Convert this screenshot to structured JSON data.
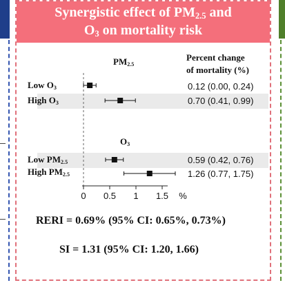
{
  "header": {
    "line1_main": "Synergistic effect of PM",
    "line1_sub": "2.5",
    "line1_tail": " and",
    "line2_main": "O",
    "line2_sub": "3",
    "line2_tail": " on mortality risk"
  },
  "colors": {
    "header_bg": "#f46f7b",
    "panel_border": "#e0707a",
    "left_panel_accent": "#1f3e8a",
    "right_panel_accent": "#4f7f2a"
  },
  "chart_data": {
    "type": "forest",
    "column_header": [
      "Percent change",
      "of mortality (%)"
    ],
    "x_ticks": [
      "0",
      "0.5",
      "1",
      "1.5",
      "%"
    ],
    "xlim": [
      0,
      1.5
    ],
    "groups": [
      {
        "title_main": "PM",
        "title_sub": "2.5",
        "rows": [
          {
            "label_main": "Low O",
            "label_sub": "3",
            "estimate": 0.12,
            "lower": 0.0,
            "upper": 0.24,
            "text": "0.12 (0.00, 0.24)"
          },
          {
            "label_main": "High O",
            "label_sub": "3",
            "estimate": 0.7,
            "lower": 0.41,
            "upper": 0.99,
            "text": "0.70 (0.41, 0.99)"
          }
        ]
      },
      {
        "title_main": "O",
        "title_sub": "3",
        "rows": [
          {
            "label_main": "Low PM",
            "label_sub": "2.5",
            "estimate": 0.59,
            "lower": 0.42,
            "upper": 0.76,
            "text": "0.59 (0.42, 0.76)"
          },
          {
            "label_main": "High PM",
            "label_sub": "2.5",
            "estimate": 1.26,
            "lower": 0.77,
            "upper": 1.75,
            "text": "1.26 (0.77, 1.75)"
          }
        ]
      }
    ]
  },
  "summary": {
    "reri": "RERI = 0.69% (95% CI: 0.65%, 0.73%)",
    "si": "SI = 1.31 (95% CI: 1.20, 1.66)"
  }
}
